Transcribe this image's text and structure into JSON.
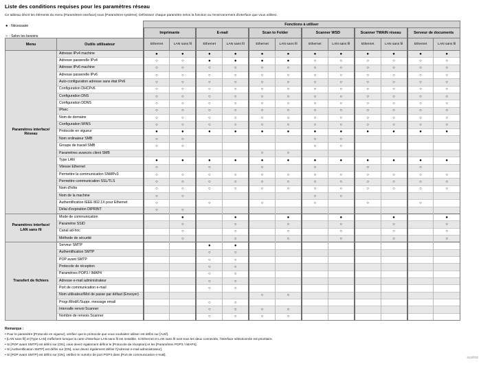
{
  "page": {
    "title": "Liste des conditions requises pour les paramètres réseau",
    "subtitle": "Ce tableau décrit les éléments du menu [Paramètres interface] sous [Paramètres système]. Définissez chaque paramètre selon la fonction ou l'environnement d'interface que vous utilisez.",
    "footer_code": "512/fr02"
  },
  "legend": {
    "required": {
      "symbol": "●",
      "label": ": Nécessaire"
    },
    "as_needed": {
      "symbol": "○",
      "label": ": Selon les besoins"
    }
  },
  "table": {
    "functions_header": "Fonctions à utiliser",
    "menu_header": "Menu",
    "tools_header": "Outils utilisateur",
    "function_groups": [
      "Imprimante",
      "E-mail",
      "Scan to Folder",
      "Scanner WSD",
      "Scanner TWAIN réseau",
      "Serveur de documents"
    ],
    "interface_types": [
      "Ethernet",
      "LAN sans fil"
    ],
    "symbols": {
      "R": "●",
      "O": "○",
      ".": ""
    },
    "sections": [
      {
        "menu": "Paramètres interface/\nRéseau",
        "rows": [
          {
            "label": "Adresse IPv4 machine",
            "cells": "RRRRRRRRRRRR"
          },
          {
            "label": "Adresse passerelle IPv4",
            "cells": "OORRRROOOOOO"
          },
          {
            "label": "Adresse IPv6 machine",
            "cells": "OOOOOOOOOOOO"
          },
          {
            "label": "Adresse passerelle IPv6",
            "cells": "OOOOOOOOOOOO"
          },
          {
            "label": "Auto-configuration adresse sans état IPv6",
            "cells": "OOOOOOOOOOOO"
          },
          {
            "label": "Configuration DHCPv6",
            "cells": "OOOOOOOOOOOO"
          },
          {
            "label": "Configuration DNS",
            "cells": "OOOOOOOOOOOO"
          },
          {
            "label": "Configuration DDNS",
            "cells": "OOOOOOOOOOOO"
          },
          {
            "label": "IPsec",
            "cells": "OOOOOOOOOOOO"
          },
          {
            "label": "Nom de domaine",
            "cells": "OOOOOOOOOOOO"
          },
          {
            "label": "Configuration WINS",
            "cells": "OOOOOOOOOOOO"
          },
          {
            "label": "Protocole en vigueur",
            "cells": "RRRRRRRRRRRR"
          },
          {
            "label": "Nom ordinateur SMB",
            "cells": "OO....OO...."
          },
          {
            "label": "Groupe de travail SMB",
            "cells": "OO....OO...."
          },
          {
            "label": "Paramètres avancés client SMB",
            "cells": "....OO......"
          },
          {
            "label": "Type LAN",
            "cells": "RRRRRRRRRRRR"
          },
          {
            "label": "Vitesse Ethernet",
            "cells": "O.O.O.O.O.O."
          },
          {
            "label": "Permettre la communication SNMPv3",
            "cells": "OOOOOOOOOOOO"
          },
          {
            "label": "Permettre communication SSL/TLS",
            "cells": "OOOOOOOOOOOO"
          },
          {
            "label": "Nom d'hôte",
            "cells": "OOOOOOOOOOOO"
          },
          {
            "label": "Nom de la machine",
            "cells": "OO....OO...."
          },
          {
            "label": "Authentification IEEE 802.1X pour Ethernet",
            "cells": "O.O.O.O.O.O."
          },
          {
            "label": "Délai d'expiration DIPRINT",
            "cells": "OO.........."
          }
        ]
      },
      {
        "menu": "Paramètres interface/\nLAN sans fil",
        "rows": [
          {
            "label": "Mode de communication",
            "cells": ".R.R.R.R.R.R"
          },
          {
            "label": "Paramètre SSID",
            "cells": ".O.O.O.O.O.O"
          },
          {
            "label": "Canal ad-hoc",
            "cells": ".O.O.O.O.O.O"
          },
          {
            "label": "Méthode de sécurité",
            "cells": ".O.O.O.O.O.O"
          }
        ]
      },
      {
        "menu": "Transfert de fichiers",
        "rows": [
          {
            "label": "Serveur SMTP",
            "cells": "..RR........"
          },
          {
            "label": "Authentification SMTP",
            "cells": "..OO........"
          },
          {
            "label": "POP avant SMTP",
            "cells": "..OO........"
          },
          {
            "label": "Protocole de réception",
            "cells": "..OO........"
          },
          {
            "label": "Paramètres POP3 / IMAP4",
            "cells": "..OO........"
          },
          {
            "label": "Adresse e-mail administrateur",
            "cells": "..OO........"
          },
          {
            "label": "Port de communication e-mail",
            "cells": "..OO........"
          },
          {
            "label": "Nom utilisateur/Mot de passe par défaut (Envoyer)",
            "cells": "....OO......"
          },
          {
            "label": "Progr./Modif./Suppr. message email",
            "cells": "..OO........"
          },
          {
            "label": "Intervalle renvoi Scanner",
            "cells": "..OOOO......"
          },
          {
            "label": "Nombre de renvois Scanner",
            "cells": "..OOOO......"
          }
        ]
      }
    ]
  },
  "remarks": {
    "heading": "Remarque :",
    "items": [
      "Pour le paramètre [Protocole en vigueur], vérifiez que le protocole que vous souhaitez utiliser est défini sur [Actif].",
      "[LAN sans fil] et [Type LAN] s'affichent lorsque la carte d'interface LAN sans fil est installée. Si Ethernet et LAN sans fil sont tous les deux connectés, l'interface sélectionnée est prioritaire.",
      "Si [POP avant SMTP] est défini sur [ON], vous devez également définir le [Protocole de réception] et les [Paramètres POP3 / IMAP4].",
      "Si [Authentification SMTP] est défini sur [ON], vous devez également définir l'[Adresse e-mail administrateur].",
      "Si [POP avant SMTP] est défini sur [ON], vérifiez le numéro de port POP3 dans [Port de communication e-mail]."
    ]
  }
}
